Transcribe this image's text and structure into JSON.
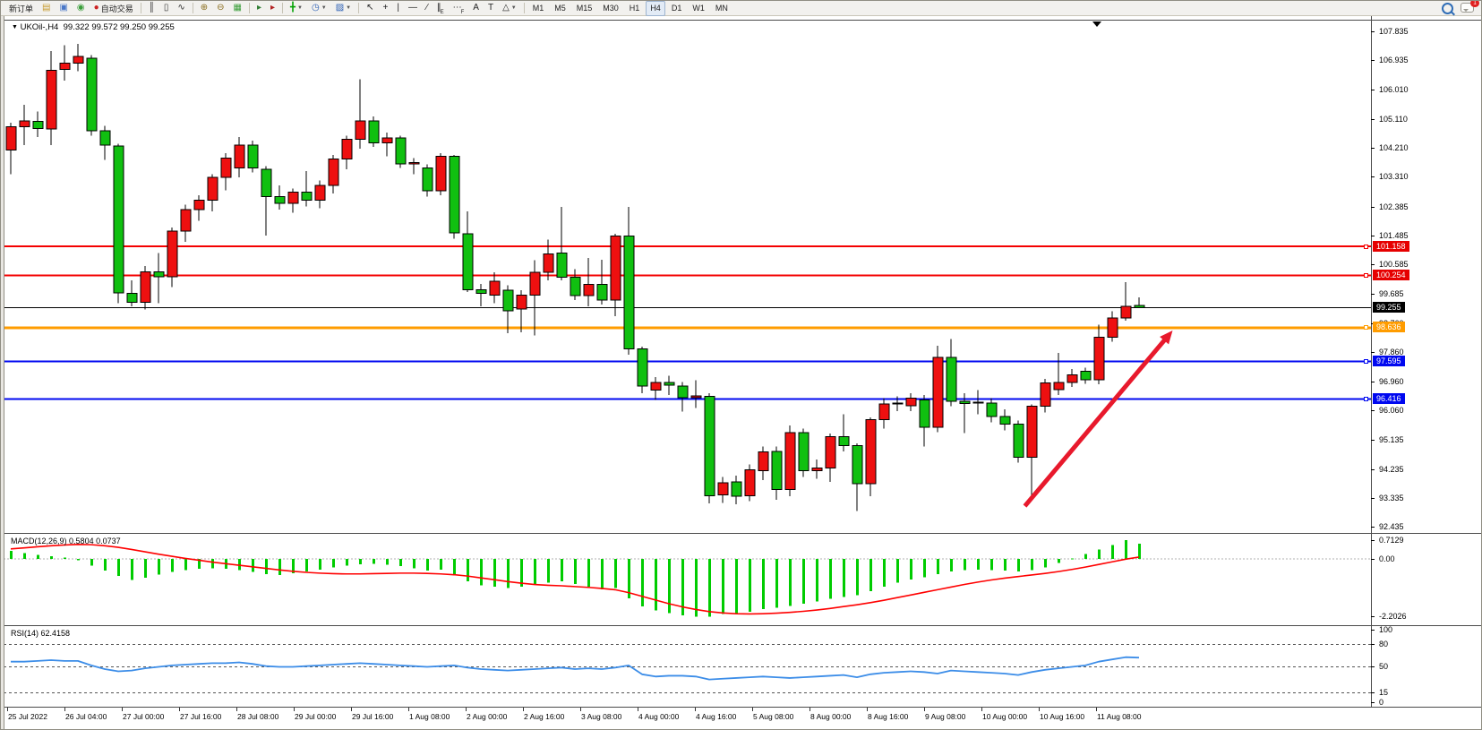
{
  "toolbar": {
    "items": [
      {
        "type": "btn",
        "name": "new-order-button",
        "text": "新订单",
        "interact": true
      },
      {
        "type": "icon",
        "name": "market-watch-icon",
        "glyph": "▤",
        "color": "#c79a2e"
      },
      {
        "type": "icon",
        "name": "terminal-icon",
        "glyph": "▣",
        "color": "#4a78c8"
      },
      {
        "type": "icon",
        "name": "signals-icon",
        "glyph": "◉",
        "color": "#3a9e3a"
      },
      {
        "type": "btn",
        "name": "autotrading-button",
        "icon_glyph": "●",
        "icon_color": "#cc2222",
        "icon_name": "autotrading-icon",
        "text": "自动交易",
        "interact": true
      },
      {
        "type": "sep"
      },
      {
        "type": "icon",
        "name": "bar-chart-icon",
        "glyph": "║",
        "color": "#333333"
      },
      {
        "type": "icon",
        "name": "candlestick-chart-icon",
        "glyph": "▯",
        "color": "#333333"
      },
      {
        "type": "icon",
        "name": "line-chart-icon",
        "glyph": "∿",
        "color": "#333333"
      },
      {
        "type": "sep"
      },
      {
        "type": "icon",
        "name": "zoom-in-icon",
        "glyph": "⊕",
        "color": "#8a6d1d"
      },
      {
        "type": "icon",
        "name": "zoom-out-icon",
        "glyph": "⊖",
        "color": "#8a6d1d"
      },
      {
        "type": "icon",
        "name": "tile-windows-icon",
        "glyph": "▦",
        "color": "#3a9e3a"
      },
      {
        "type": "sep"
      },
      {
        "type": "icon",
        "name": "auto-scroll-icon",
        "glyph": "▸",
        "color": "#2e7d32"
      },
      {
        "type": "icon",
        "name": "chart-shift-icon",
        "glyph": "▸",
        "color": "#b22222"
      },
      {
        "type": "sep"
      },
      {
        "type": "icon",
        "name": "add-indicator-icon",
        "glyph": "╋",
        "color": "#00a000",
        "caret": true
      },
      {
        "type": "icon",
        "name": "periods-clock-icon",
        "glyph": "◷",
        "color": "#2b5fb4",
        "caret": true
      },
      {
        "type": "icon",
        "name": "templates-icon",
        "glyph": "▨",
        "color": "#2b5fb4",
        "caret": true
      },
      {
        "type": "sep"
      },
      {
        "type": "icon",
        "name": "cursor-icon",
        "glyph": "↖",
        "color": "#222222"
      },
      {
        "type": "icon",
        "name": "crosshair-icon",
        "glyph": "+",
        "color": "#222222"
      },
      {
        "type": "icon",
        "name": "vertical-line-icon",
        "glyph": "|",
        "color": "#222222"
      },
      {
        "type": "icon",
        "name": "horizontal-line-icon",
        "glyph": "—",
        "color": "#222222"
      },
      {
        "type": "icon",
        "name": "trendline-icon",
        "glyph": "∕",
        "color": "#222222"
      },
      {
        "type": "icon",
        "name": "equidistant-channel-icon",
        "glyph": "∥",
        "sub": "E",
        "color": "#222222"
      },
      {
        "type": "icon",
        "name": "fibonacci-icon",
        "glyph": "⋯",
        "sub": "F",
        "color": "#222222"
      },
      {
        "type": "icon",
        "name": "text-icon",
        "glyph": "A",
        "color": "#222222"
      },
      {
        "type": "icon",
        "name": "text-label-icon",
        "glyph": "T",
        "color": "#222222"
      },
      {
        "type": "icon",
        "name": "arrows-shapes-icon",
        "glyph": "△",
        "color": "#222222",
        "caret": true
      },
      {
        "type": "sep"
      },
      {
        "type": "tf",
        "name": "timeframe-m1",
        "text": "M1"
      },
      {
        "type": "tf",
        "name": "timeframe-m5",
        "text": "M5"
      },
      {
        "type": "tf",
        "name": "timeframe-m15",
        "text": "M15"
      },
      {
        "type": "tf",
        "name": "timeframe-m30",
        "text": "M30"
      },
      {
        "type": "tf",
        "name": "timeframe-h1",
        "text": "H1"
      },
      {
        "type": "tf",
        "name": "timeframe-h4",
        "text": "H4",
        "active": true
      },
      {
        "type": "tf",
        "name": "timeframe-d1",
        "text": "D1"
      },
      {
        "type": "tf",
        "name": "timeframe-w1",
        "text": "W1"
      },
      {
        "type": "tf",
        "name": "timeframe-mn",
        "text": "MN"
      }
    ],
    "notification_count": "1"
  },
  "chart_data": {
    "type": "candlestick",
    "title": "UKOil-,H4",
    "ohlc_text": "99.322 99.572 99.250 99.255",
    "candle_up_color": "#ee1010",
    "candle_down_color": "#10c010",
    "y_axis": {
      "min": 92.435,
      "max": 107.835,
      "ticks": [
        107.835,
        106.935,
        106.01,
        105.11,
        104.21,
        103.31,
        102.385,
        101.485,
        100.585,
        99.685,
        98.76,
        97.86,
        96.96,
        96.06,
        95.135,
        94.235,
        93.335,
        92.435
      ]
    },
    "levels": [
      {
        "price": 101.158,
        "label": "101.158",
        "color": "#f40000",
        "tag_bg": "#e60000",
        "thickness": 2
      },
      {
        "price": 100.254,
        "label": "100.254",
        "color": "#f40000",
        "tag_bg": "#e60000",
        "thickness": 2
      },
      {
        "price": 98.636,
        "label": "98.636",
        "color": "#ff9c00",
        "tag_bg": "#ff9c00",
        "thickness": 3
      },
      {
        "price": 97.595,
        "label": "97.595",
        "color": "#0008f0",
        "tag_bg": "#0008f0",
        "thickness": 2
      },
      {
        "price": 96.416,
        "label": "96.416",
        "color": "#0008f0",
        "tag_bg": "#0008f0",
        "thickness": 2
      }
    ],
    "current_price": {
      "price": 99.255,
      "label": "99.255",
      "line_color": "#000000",
      "tag_bg": "#000000"
    },
    "arrow": {
      "color": "#e8192c",
      "from_bar": 75.5,
      "from_price": 93.1,
      "to_bar": 86.5,
      "to_price": 98.55
    },
    "candles": [
      [
        104.15,
        105.0,
        103.4,
        104.88
      ],
      [
        104.88,
        105.55,
        104.3,
        105.06
      ],
      [
        105.04,
        105.35,
        104.55,
        104.82
      ],
      [
        104.8,
        107.22,
        104.3,
        106.62
      ],
      [
        106.65,
        107.4,
        106.3,
        106.85
      ],
      [
        106.85,
        107.45,
        106.6,
        107.05
      ],
      [
        107.0,
        107.1,
        104.6,
        104.75
      ],
      [
        104.75,
        104.9,
        103.85,
        104.3
      ],
      [
        104.28,
        104.35,
        99.4,
        99.72
      ],
      [
        99.7,
        100.1,
        99.3,
        99.42
      ],
      [
        99.42,
        100.55,
        99.2,
        100.37
      ],
      [
        100.37,
        100.95,
        99.4,
        100.22
      ],
      [
        100.22,
        101.75,
        99.9,
        101.64
      ],
      [
        101.64,
        102.45,
        101.3,
        102.3
      ],
      [
        102.3,
        102.75,
        101.95,
        102.6
      ],
      [
        102.6,
        103.4,
        102.25,
        103.3
      ],
      [
        103.3,
        104.05,
        102.9,
        103.9
      ],
      [
        103.6,
        104.55,
        103.3,
        104.3
      ],
      [
        104.3,
        104.45,
        103.45,
        103.6
      ],
      [
        103.55,
        103.65,
        101.5,
        102.7
      ],
      [
        102.7,
        103.05,
        102.3,
        102.5
      ],
      [
        102.5,
        102.95,
        102.2,
        102.85
      ],
      [
        102.85,
        103.5,
        102.4,
        102.6
      ],
      [
        102.6,
        103.2,
        102.35,
        103.05
      ],
      [
        103.05,
        104.0,
        102.8,
        103.88
      ],
      [
        103.88,
        104.6,
        103.55,
        104.48
      ],
      [
        104.48,
        106.35,
        104.2,
        105.05
      ],
      [
        105.05,
        105.2,
        104.25,
        104.38
      ],
      [
        104.38,
        104.7,
        103.95,
        104.52
      ],
      [
        104.52,
        104.6,
        103.6,
        103.72
      ],
      [
        103.72,
        103.9,
        103.4,
        103.76
      ],
      [
        103.6,
        103.7,
        102.7,
        102.88
      ],
      [
        102.88,
        104.05,
        102.75,
        103.95
      ],
      [
        103.95,
        104.0,
        101.4,
        101.58
      ],
      [
        101.55,
        102.25,
        99.75,
        99.82
      ],
      [
        99.82,
        100.0,
        99.3,
        99.7
      ],
      [
        99.65,
        100.35,
        99.4,
        100.08
      ],
      [
        99.8,
        99.95,
        98.46,
        99.16
      ],
      [
        99.22,
        99.8,
        98.5,
        99.65
      ],
      [
        99.65,
        100.73,
        98.4,
        100.35
      ],
      [
        100.35,
        101.37,
        100.1,
        100.93
      ],
      [
        100.95,
        102.39,
        100.1,
        100.2
      ],
      [
        100.2,
        100.45,
        99.5,
        99.63
      ],
      [
        99.63,
        100.8,
        99.3,
        99.98
      ],
      [
        99.98,
        100.75,
        99.35,
        99.5
      ],
      [
        99.5,
        101.55,
        99.0,
        101.48
      ],
      [
        101.48,
        102.39,
        97.8,
        97.98
      ],
      [
        97.98,
        98.05,
        96.6,
        96.82
      ],
      [
        96.7,
        97.1,
        96.4,
        96.94
      ],
      [
        96.94,
        97.15,
        96.55,
        96.85
      ],
      [
        96.82,
        96.95,
        96.03,
        96.46
      ],
      [
        96.46,
        97.0,
        96.15,
        96.52
      ],
      [
        96.5,
        96.6,
        93.18,
        93.42
      ],
      [
        93.45,
        94.0,
        93.2,
        93.82
      ],
      [
        93.85,
        94.05,
        93.15,
        93.4
      ],
      [
        93.42,
        94.4,
        93.25,
        94.22
      ],
      [
        94.2,
        94.95,
        93.9,
        94.78
      ],
      [
        94.8,
        94.95,
        93.3,
        93.62
      ],
      [
        93.62,
        95.6,
        93.4,
        95.38
      ],
      [
        95.38,
        95.5,
        94.0,
        94.2
      ],
      [
        94.2,
        94.55,
        93.95,
        94.28
      ],
      [
        94.28,
        95.35,
        93.85,
        95.25
      ],
      [
        95.25,
        95.95,
        94.8,
        94.98
      ],
      [
        94.98,
        95.05,
        92.95,
        93.8
      ],
      [
        93.8,
        95.85,
        93.4,
        95.78
      ],
      [
        95.78,
        96.45,
        95.5,
        96.27
      ],
      [
        96.27,
        96.5,
        96.05,
        96.3
      ],
      [
        96.22,
        96.6,
        96.05,
        96.45
      ],
      [
        96.4,
        96.55,
        94.95,
        95.55
      ],
      [
        95.55,
        98.08,
        95.4,
        97.72
      ],
      [
        97.72,
        98.28,
        96.2,
        96.35
      ],
      [
        96.35,
        96.6,
        95.36,
        96.28
      ],
      [
        96.3,
        96.7,
        95.95,
        96.32
      ],
      [
        96.3,
        96.45,
        95.7,
        95.88
      ],
      [
        95.88,
        96.1,
        95.45,
        95.65
      ],
      [
        95.65,
        95.75,
        94.45,
        94.62
      ],
      [
        94.62,
        96.25,
        93.4,
        96.2
      ],
      [
        96.2,
        97.05,
        96.0,
        96.92
      ],
      [
        96.72,
        97.86,
        96.55,
        96.94
      ],
      [
        96.94,
        97.35,
        96.8,
        97.18
      ],
      [
        97.28,
        97.4,
        96.9,
        97.02
      ],
      [
        97.02,
        98.73,
        96.88,
        98.34
      ],
      [
        98.34,
        99.15,
        98.2,
        98.94
      ],
      [
        98.94,
        100.05,
        98.85,
        99.3
      ],
      [
        99.322,
        99.572,
        99.25,
        99.255
      ]
    ]
  },
  "macd": {
    "label": "MACD(12,26,9)",
    "values_text": "0.5804 0.0737",
    "axis_ticks": [
      {
        "v": 0.7129,
        "label": "0.7129"
      },
      {
        "v": 0,
        "label": "0.00"
      },
      {
        "v": -2.2026,
        "label": "-2.2026"
      }
    ],
    "hist_color": "#00cc00",
    "signal_color": "#ff0000",
    "histogram": [
      0.3,
      0.22,
      0.15,
      0.1,
      0.05,
      -0.05,
      -0.25,
      -0.45,
      -0.65,
      -0.8,
      -0.72,
      -0.6,
      -0.5,
      -0.42,
      -0.38,
      -0.35,
      -0.38,
      -0.42,
      -0.5,
      -0.58,
      -0.62,
      -0.55,
      -0.48,
      -0.4,
      -0.32,
      -0.25,
      -0.2,
      -0.18,
      -0.22,
      -0.28,
      -0.35,
      -0.45,
      -0.4,
      -0.6,
      -0.85,
      -1.0,
      -1.05,
      -1.1,
      -1.05,
      -0.98,
      -0.9,
      -0.85,
      -0.95,
      -1.05,
      -1.15,
      -1.1,
      -1.5,
      -1.8,
      -1.95,
      -2.05,
      -2.15,
      -2.2,
      -2.2,
      -2.1,
      -2.05,
      -2.0,
      -1.9,
      -1.85,
      -1.78,
      -1.7,
      -1.62,
      -1.52,
      -1.45,
      -1.38,
      -1.22,
      -1.05,
      -0.9,
      -0.78,
      -0.7,
      -0.58,
      -0.48,
      -0.42,
      -0.4,
      -0.42,
      -0.45,
      -0.48,
      -0.42,
      -0.32,
      -0.15,
      0.02,
      0.18,
      0.35,
      0.52,
      0.71,
      0.58
    ],
    "signal": [
      0.38,
      0.42,
      0.46,
      0.5,
      0.53,
      0.55,
      0.54,
      0.5,
      0.44,
      0.36,
      0.27,
      0.18,
      0.1,
      0.02,
      -0.05,
      -0.12,
      -0.18,
      -0.24,
      -0.3,
      -0.36,
      -0.42,
      -0.47,
      -0.51,
      -0.54,
      -0.56,
      -0.57,
      -0.57,
      -0.56,
      -0.55,
      -0.54,
      -0.54,
      -0.55,
      -0.57,
      -0.6,
      -0.65,
      -0.72,
      -0.79,
      -0.86,
      -0.92,
      -0.97,
      -1.0,
      -1.02,
      -1.05,
      -1.08,
      -1.12,
      -1.17,
      -1.28,
      -1.42,
      -1.56,
      -1.7,
      -1.82,
      -1.92,
      -2.0,
      -2.05,
      -2.08,
      -2.09,
      -2.08,
      -2.06,
      -2.03,
      -1.99,
      -1.94,
      -1.88,
      -1.81,
      -1.74,
      -1.66,
      -1.57,
      -1.47,
      -1.37,
      -1.27,
      -1.17,
      -1.07,
      -0.97,
      -0.88,
      -0.8,
      -0.73,
      -0.67,
      -0.61,
      -0.55,
      -0.48,
      -0.4,
      -0.31,
      -0.21,
      -0.11,
      -0.01,
      0.07
    ]
  },
  "rsi": {
    "label": "RSI(14)",
    "value_text": "62.4158",
    "line_color": "#3c8de8",
    "axis_ticks": [
      {
        "v": 100,
        "label": "100"
      },
      {
        "v": 80,
        "label": "80"
      },
      {
        "v": 50,
        "label": "50"
      },
      {
        "v": 15,
        "label": "15"
      },
      {
        "v": 0,
        "label": "0"
      }
    ],
    "level_lines": [
      80,
      50,
      15
    ],
    "series": [
      57,
      57,
      58,
      59,
      58,
      58,
      52,
      47,
      44,
      45,
      48,
      50,
      52,
      53,
      54,
      55,
      55,
      56,
      54,
      51,
      50,
      50,
      51,
      52,
      53,
      54,
      55,
      54,
      53,
      52,
      51,
      50,
      51,
      52,
      49,
      47,
      46,
      45,
      46,
      47,
      48,
      49,
      47,
      48,
      47,
      49,
      52,
      40,
      37,
      38,
      38,
      37,
      33,
      34,
      35,
      36,
      37,
      36,
      35,
      36,
      37,
      38,
      39,
      36,
      40,
      42,
      43,
      44,
      43,
      41,
      45,
      44,
      43,
      42,
      41,
      39,
      43,
      46,
      48,
      50,
      52,
      57,
      60,
      63,
      62.4
    ]
  },
  "time_axis": {
    "labels": [
      "25 Jul 2022",
      "26 Jul 04:00",
      "27 Jul 00:00",
      "27 Jul 16:00",
      "28 Jul 08:00",
      "29 Jul 00:00",
      "29 Jul 16:00",
      "1 Aug 08:00",
      "2 Aug 00:00",
      "2 Aug 16:00",
      "3 Aug 08:00",
      "4 Aug 00:00",
      "4 Aug 16:00",
      "5 Aug 08:00",
      "8 Aug 00:00",
      "8 Aug 16:00",
      "9 Aug 08:00",
      "10 Aug 00:00",
      "10 Aug 16:00",
      "11 Aug 08:00"
    ]
  }
}
